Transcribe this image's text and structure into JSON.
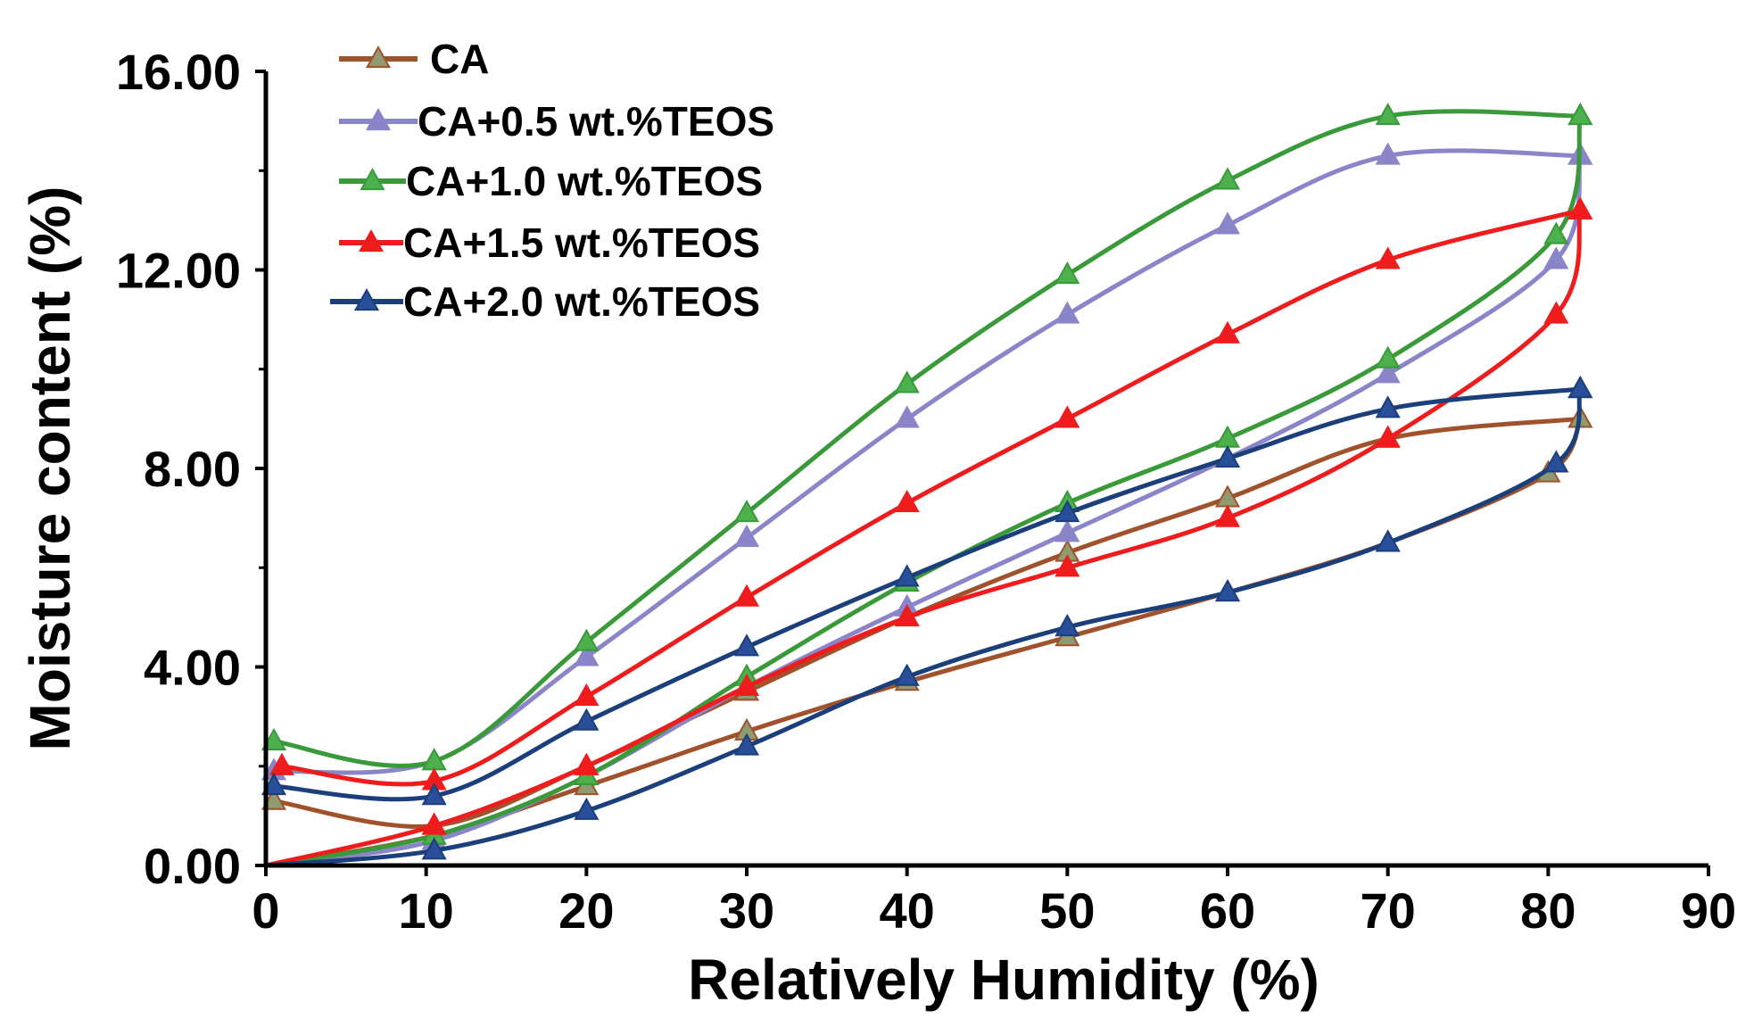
{
  "chart_data": {
    "type": "line",
    "title": "",
    "xlabel": "Relatively Humidity (%)",
    "ylabel": "Moisture content (%)",
    "xlim": [
      0,
      90
    ],
    "ylim": [
      0,
      16
    ],
    "xticks": [
      0,
      10,
      20,
      30,
      40,
      50,
      60,
      70,
      80,
      90
    ],
    "xtick_labels": [
      "0",
      "10",
      "20",
      "30",
      "40",
      "50",
      "60",
      "70",
      "80",
      "90"
    ],
    "yticks": [
      0,
      4,
      8,
      12,
      16
    ],
    "ytick_labels": [
      "0.00",
      "4.00",
      "8.00",
      "12.00",
      "16.00"
    ],
    "grid": false,
    "legend_position": "top-left",
    "series": [
      {
        "name": "CA",
        "color": "#a0522d",
        "marker_color": "#8f9a70",
        "adsorption": [
          [
            0,
            0
          ],
          [
            10.5,
            0.6
          ],
          [
            20,
            1.6
          ],
          [
            30,
            2.7
          ],
          [
            40,
            3.7
          ],
          [
            50,
            4.6
          ],
          [
            60,
            5.5
          ],
          [
            70,
            6.5
          ],
          [
            80,
            7.9
          ],
          [
            82,
            9.0
          ]
        ],
        "desorption": [
          [
            82,
            9.0
          ],
          [
            70,
            8.6
          ],
          [
            60,
            7.4
          ],
          [
            50,
            6.3
          ],
          [
            40,
            5.0
          ],
          [
            30,
            3.5
          ],
          [
            20,
            2.0
          ],
          [
            10.5,
            0.8
          ],
          [
            0.5,
            1.3
          ]
        ]
      },
      {
        "name": "CA+0.5 wt.%TEOS",
        "color": "#8a84c8",
        "marker_color": "#8a84c8",
        "adsorption": [
          [
            0,
            0
          ],
          [
            10.5,
            0.5
          ],
          [
            20,
            1.8
          ],
          [
            30,
            3.6
          ],
          [
            40,
            5.2
          ],
          [
            50,
            6.7
          ],
          [
            60,
            8.2
          ],
          [
            70,
            9.9
          ],
          [
            80.5,
            12.2
          ],
          [
            82,
            14.3
          ]
        ],
        "desorption": [
          [
            82,
            14.3
          ],
          [
            70,
            14.3
          ],
          [
            60,
            12.9
          ],
          [
            50,
            11.1
          ],
          [
            40,
            9.0
          ],
          [
            30,
            6.6
          ],
          [
            20,
            4.2
          ],
          [
            10.5,
            2.1
          ],
          [
            0.5,
            1.9
          ]
        ]
      },
      {
        "name": "CA+1.0 wt.%TEOS",
        "color": "#3a9a3a",
        "marker_color": "#4cb04c",
        "adsorption": [
          [
            0,
            0
          ],
          [
            10.5,
            0.6
          ],
          [
            20,
            1.8
          ],
          [
            30,
            3.8
          ],
          [
            40,
            5.7
          ],
          [
            50,
            7.3
          ],
          [
            60,
            8.6
          ],
          [
            70,
            10.2
          ],
          [
            80.5,
            12.7
          ],
          [
            82,
            15.1
          ]
        ],
        "desorption": [
          [
            82,
            15.1
          ],
          [
            70,
            15.1
          ],
          [
            60,
            13.8
          ],
          [
            50,
            11.9
          ],
          [
            40,
            9.7
          ],
          [
            30,
            7.1
          ],
          [
            20,
            4.5
          ],
          [
            10.5,
            2.1
          ],
          [
            0.5,
            2.5
          ]
        ]
      },
      {
        "name": "CA+1.5 wt.%TEOS",
        "color": "#ee1c1c",
        "marker_color": "#ee1c1c",
        "adsorption": [
          [
            0,
            0
          ],
          [
            10.5,
            0.8
          ],
          [
            20,
            2.0
          ],
          [
            30,
            3.6
          ],
          [
            40,
            5.0
          ],
          [
            50,
            6.0
          ],
          [
            60,
            7.0
          ],
          [
            70,
            8.6
          ],
          [
            80.5,
            11.1
          ],
          [
            82,
            13.2
          ]
        ],
        "desorption": [
          [
            82,
            13.2
          ],
          [
            70,
            12.2
          ],
          [
            60,
            10.7
          ],
          [
            50,
            9.0
          ],
          [
            40,
            7.3
          ],
          [
            30,
            5.4
          ],
          [
            20,
            3.4
          ],
          [
            10.5,
            1.7
          ],
          [
            1,
            2.0
          ]
        ]
      },
      {
        "name": "CA+2.0 wt.%TEOS",
        "color": "#1b3f7a",
        "marker_color": "#2a4f9a",
        "adsorption": [
          [
            0,
            0
          ],
          [
            10.5,
            0.3
          ],
          [
            20,
            1.1
          ],
          [
            30,
            2.4
          ],
          [
            40,
            3.8
          ],
          [
            50,
            4.8
          ],
          [
            60,
            5.5
          ],
          [
            70,
            6.5
          ],
          [
            80.5,
            8.1
          ],
          [
            82,
            9.6
          ]
        ],
        "desorption": [
          [
            82,
            9.6
          ],
          [
            70,
            9.2
          ],
          [
            60,
            8.2
          ],
          [
            50,
            7.1
          ],
          [
            40,
            5.8
          ],
          [
            30,
            4.4
          ],
          [
            20,
            2.9
          ],
          [
            10.5,
            1.4
          ],
          [
            0.5,
            1.6
          ]
        ]
      }
    ]
  }
}
